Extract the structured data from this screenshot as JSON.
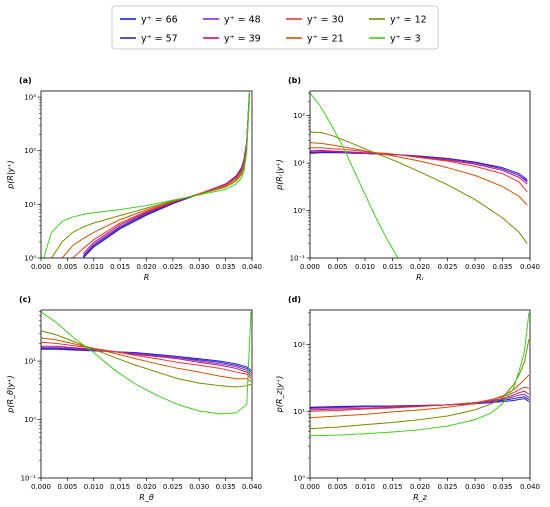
{
  "legend": {
    "placement": "top-center",
    "entries": [
      {
        "label": "y⁺ = 66",
        "color": "#1f1fd6"
      },
      {
        "label": "y⁺ = 57",
        "color": "#3a1fa8"
      },
      {
        "label": "y⁺ = 48",
        "color": "#8a2be2"
      },
      {
        "label": "y⁺ = 39",
        "color": "#c2185b"
      },
      {
        "label": "y⁺ = 30",
        "color": "#e53935"
      },
      {
        "label": "y⁺ = 21",
        "color": "#d35400"
      },
      {
        "label": "y⁺ = 12",
        "color": "#7a8a00"
      },
      {
        "label": "y⁺ = 3",
        "color": "#44cc22"
      }
    ]
  },
  "chart_data": [
    {
      "type": "line",
      "panel_label": "(a)",
      "xlabel": "R",
      "ylabel": "p(R|y⁺)",
      "yscale": "log",
      "xlim": [
        0.0,
        0.04
      ],
      "ylim": [
        1,
        1300
      ],
      "x_ticks": [
        "0.000",
        "0.005",
        "0.010",
        "0.015",
        "0.020",
        "0.025",
        "0.030",
        "0.035",
        "0.040"
      ],
      "y_ticks": [
        {
          "value": 1,
          "label": "10⁰"
        },
        {
          "value": 10,
          "label": "10¹"
        },
        {
          "value": 100,
          "label": "10²"
        },
        {
          "value": 1000,
          "label": "10³"
        }
      ],
      "x": [
        0.0005,
        0.002,
        0.004,
        0.006,
        0.008,
        0.01,
        0.015,
        0.02,
        0.025,
        0.03,
        0.035,
        0.037,
        0.038,
        0.0385,
        0.039,
        0.0395
      ],
      "series": [
        {
          "name": "y⁺ = 66",
          "color": "#1f1fd6",
          "values": [
            null,
            null,
            null,
            null,
            1.0,
            1.6,
            3.5,
            6.3,
            10.3,
            15.5,
            24,
            34,
            48,
            70,
            150,
            1200
          ]
        },
        {
          "name": "y⁺ = 57",
          "color": "#3a1fa8",
          "values": [
            null,
            null,
            null,
            null,
            1.05,
            1.7,
            3.7,
            6.6,
            10.6,
            15.6,
            24,
            33,
            46,
            68,
            145,
            1150
          ]
        },
        {
          "name": "y⁺ = 48",
          "color": "#8a2be2",
          "values": [
            null,
            null,
            null,
            null,
            1.1,
            1.8,
            3.9,
            6.9,
            10.8,
            15.7,
            24,
            33,
            45,
            65,
            140,
            1100
          ]
        },
        {
          "name": "y⁺ = 39",
          "color": "#c2185b",
          "values": [
            null,
            null,
            null,
            null,
            1.2,
            1.95,
            4.2,
            7.1,
            11.0,
            15.8,
            23,
            32,
            44,
            62,
            135,
            1050
          ]
        },
        {
          "name": "y⁺ = 30",
          "color": "#e53935",
          "values": [
            null,
            null,
            null,
            1.0,
            1.5,
            2.2,
            4.5,
            7.4,
            11.2,
            15.8,
            23,
            31,
            42,
            60,
            130,
            1000
          ]
        },
        {
          "name": "y⁺ = 21",
          "color": "#d35400",
          "values": [
            null,
            null,
            1.0,
            1.7,
            2.3,
            3.0,
            5.2,
            7.9,
            11.4,
            15.6,
            22,
            29,
            39,
            55,
            120,
            950
          ]
        },
        {
          "name": "y⁺ = 12",
          "color": "#7a8a00",
          "values": [
            null,
            1.0,
            2.0,
            3.0,
            3.8,
            4.5,
            6.2,
            8.5,
            11.6,
            15.4,
            21,
            27,
            36,
            50,
            110,
            900
          ]
        },
        {
          "name": "y⁺ = 3",
          "color": "#44cc22",
          "values": [
            1.0,
            3.0,
            4.8,
            5.8,
            6.5,
            7.0,
            8.0,
            9.5,
            12.0,
            15.0,
            19,
            24,
            31,
            42,
            95,
            1250
          ]
        }
      ]
    },
    {
      "type": "line",
      "panel_label": "(b)",
      "xlabel": "Rᵣ",
      "ylabel": "p(Rᵣ|y⁺)",
      "yscale": "log",
      "xlim": [
        0.0,
        0.04
      ],
      "ylim": [
        0.1,
        330
      ],
      "x_ticks": [
        "0.000",
        "0.005",
        "0.010",
        "0.015",
        "0.020",
        "0.025",
        "0.030",
        "0.035",
        "0.040"
      ],
      "y_ticks": [
        {
          "value": 0.1,
          "label": "10⁻¹"
        },
        {
          "value": 1,
          "label": "10⁰"
        },
        {
          "value": 10,
          "label": "10¹"
        },
        {
          "value": 100,
          "label": "10²"
        }
      ],
      "x": [
        0.0,
        0.002,
        0.004,
        0.006,
        0.008,
        0.01,
        0.012,
        0.014,
        0.016,
        0.02,
        0.025,
        0.03,
        0.035,
        0.038,
        0.0395
      ],
      "series": [
        {
          "name": "y⁺ = 66",
          "color": "#1f1fd6",
          "values": [
            16,
            16.5,
            16.5,
            16.5,
            16,
            16,
            15.5,
            15.5,
            15,
            14,
            12.5,
            10.5,
            8,
            6,
            4.5
          ]
        },
        {
          "name": "y⁺ = 57",
          "color": "#3a1fa8",
          "values": [
            16.5,
            17,
            17,
            16.5,
            16.5,
            16,
            15.5,
            15,
            15,
            14,
            12.5,
            10.5,
            7.5,
            5.5,
            4.2
          ]
        },
        {
          "name": "y⁺ = 48",
          "color": "#8a2be2",
          "values": [
            17,
            17.5,
            17.5,
            17,
            16.5,
            16,
            15.5,
            15,
            15,
            13.5,
            12,
            10,
            7.5,
            5.5,
            4
          ]
        },
        {
          "name": "y⁺ = 39",
          "color": "#c2185b",
          "values": [
            18,
            18.5,
            18,
            17.5,
            17,
            16.5,
            16,
            15.5,
            15,
            13.5,
            11.5,
            9.5,
            7,
            5,
            3.6
          ]
        },
        {
          "name": "y⁺ = 30",
          "color": "#e53935",
          "values": [
            21,
            21,
            20,
            19.5,
            18.5,
            17.5,
            16.5,
            16,
            15,
            13,
            11,
            8.5,
            6,
            4,
            2.5
          ]
        },
        {
          "name": "y⁺ = 21",
          "color": "#d35400",
          "values": [
            27,
            26,
            24,
            22,
            20,
            18,
            16.5,
            15,
            13.5,
            11,
            8,
            5.5,
            3.2,
            2.0,
            1.3
          ]
        },
        {
          "name": "y⁺ = 12",
          "color": "#7a8a00",
          "values": [
            45,
            44,
            38,
            31,
            25,
            20,
            16,
            13,
            10.5,
            6.5,
            3.5,
            1.7,
            0.7,
            0.35,
            0.2
          ]
        },
        {
          "name": "y⁺ = 3",
          "color": "#44cc22",
          "values": [
            300,
            150,
            60,
            22,
            7,
            2.2,
            0.7,
            0.25,
            0.1,
            null,
            null,
            null,
            null,
            null,
            null
          ]
        }
      ]
    },
    {
      "type": "line",
      "panel_label": "(c)",
      "xlabel": "R_θ",
      "ylabel": "p(R_θ|y⁺)",
      "yscale": "log",
      "xlim": [
        0.0,
        0.04
      ],
      "ylim": [
        0.1,
        75
      ],
      "x_ticks": [
        "0.000",
        "0.005",
        "0.010",
        "0.015",
        "0.020",
        "0.025",
        "0.030",
        "0.035",
        "0.040"
      ],
      "y_ticks": [
        {
          "value": 0.1,
          "label": "10⁻¹"
        },
        {
          "value": 1,
          "label": "10⁰"
        },
        {
          "value": 10,
          "label": "10¹"
        }
      ],
      "x": [
        0.0,
        0.003,
        0.006,
        0.01,
        0.014,
        0.018,
        0.022,
        0.026,
        0.03,
        0.034,
        0.037,
        0.039,
        0.0398
      ],
      "series": [
        {
          "name": "y⁺ = 66",
          "color": "#1f1fd6",
          "values": [
            16,
            16,
            15.5,
            15,
            14.5,
            14,
            13,
            12,
            11,
            10,
            9,
            8,
            7
          ]
        },
        {
          "name": "y⁺ = 57",
          "color": "#3a1fa8",
          "values": [
            16.5,
            16.5,
            16,
            15.5,
            14.5,
            13.5,
            12.5,
            11.5,
            10.5,
            9.5,
            8.5,
            7.5,
            6.5
          ]
        },
        {
          "name": "y⁺ = 48",
          "color": "#8a2be2",
          "values": [
            17,
            17,
            16.5,
            15.5,
            14.5,
            13.5,
            12.5,
            11.5,
            10,
            9,
            8,
            7,
            6
          ]
        },
        {
          "name": "y⁺ = 39",
          "color": "#c2185b",
          "values": [
            18,
            18,
            17,
            16,
            14.5,
            13,
            12,
            11,
            9.5,
            8.5,
            7.5,
            6.5,
            5.5
          ]
        },
        {
          "name": "y⁺ = 30",
          "color": "#e53935",
          "values": [
            21,
            20,
            18.5,
            16.5,
            14.5,
            12.5,
            11,
            9.5,
            8.5,
            7.5,
            6.5,
            6,
            5
          ]
        },
        {
          "name": "y⁺ = 21",
          "color": "#d35400",
          "values": [
            25,
            23,
            20,
            16.5,
            13.5,
            11,
            9,
            7.5,
            6.5,
            5.5,
            5,
            5,
            4.5
          ]
        },
        {
          "name": "y⁺ = 12",
          "color": "#7a8a00",
          "values": [
            33,
            28,
            22,
            16,
            11.5,
            8.5,
            6.5,
            5,
            4.2,
            3.8,
            3.6,
            3.8,
            4
          ]
        },
        {
          "name": "y⁺ = 3",
          "color": "#44cc22",
          "values": [
            70,
            45,
            26,
            14,
            7,
            4,
            2.6,
            1.8,
            1.4,
            1.25,
            1.3,
            1.8,
            70
          ]
        }
      ]
    },
    {
      "type": "line",
      "panel_label": "(d)",
      "xlabel": "R_z",
      "ylabel": "p(R_z|y⁺)",
      "yscale": "log",
      "xlim": [
        0.0,
        0.04
      ],
      "ylim": [
        1,
        330
      ],
      "x_ticks": [
        "0.000",
        "0.005",
        "0.010",
        "0.015",
        "0.020",
        "0.025",
        "0.030",
        "0.035",
        "0.040"
      ],
      "y_ticks": [
        {
          "value": 1,
          "label": "10⁰"
        },
        {
          "value": 10,
          "label": "10¹"
        },
        {
          "value": 100,
          "label": "10²"
        }
      ],
      "x": [
        0.0,
        0.005,
        0.01,
        0.015,
        0.02,
        0.025,
        0.03,
        0.033,
        0.035,
        0.037,
        0.038,
        0.039,
        0.0398
      ],
      "series": [
        {
          "name": "y⁺ = 66",
          "color": "#1f1fd6",
          "values": [
            11.5,
            11.8,
            12,
            12,
            12.2,
            12.5,
            13,
            13.5,
            14,
            14.5,
            15,
            15.5,
            14
          ]
        },
        {
          "name": "y⁺ = 57",
          "color": "#3a1fa8",
          "values": [
            11.2,
            11.5,
            11.8,
            12,
            12.2,
            12.5,
            13,
            13.8,
            14.5,
            15.5,
            16,
            16.5,
            15
          ]
        },
        {
          "name": "y⁺ = 48",
          "color": "#8a2be2",
          "values": [
            11,
            11.3,
            11.6,
            11.8,
            12,
            12.5,
            13.2,
            14,
            15,
            16.5,
            17.5,
            18,
            16
          ]
        },
        {
          "name": "y⁺ = 39",
          "color": "#c2185b",
          "values": [
            10.5,
            10.8,
            11,
            11.5,
            12,
            12.5,
            13.5,
            14.5,
            15.5,
            17.5,
            19,
            20,
            18
          ]
        },
        {
          "name": "y⁺ = 30",
          "color": "#e53935",
          "values": [
            10,
            10.3,
            10.8,
            11.2,
            11.8,
            12.5,
            13.5,
            15,
            16.5,
            19,
            21,
            23,
            22
          ]
        },
        {
          "name": "y⁺ = 21",
          "color": "#d35400",
          "values": [
            8,
            8.5,
            9,
            9.8,
            10.5,
            11.5,
            13,
            15,
            17,
            21,
            25,
            30,
            35
          ]
        },
        {
          "name": "y⁺ = 12",
          "color": "#7a8a00",
          "values": [
            5.5,
            5.8,
            6.3,
            6.8,
            7.5,
            8.5,
            10.5,
            13,
            16,
            25,
            35,
            55,
            120
          ]
        },
        {
          "name": "y⁺ = 3",
          "color": "#44cc22",
          "values": [
            4.3,
            4.4,
            4.6,
            4.9,
            5.3,
            6,
            7.5,
            9.5,
            13,
            22,
            40,
            80,
            300
          ]
        }
      ]
    }
  ]
}
